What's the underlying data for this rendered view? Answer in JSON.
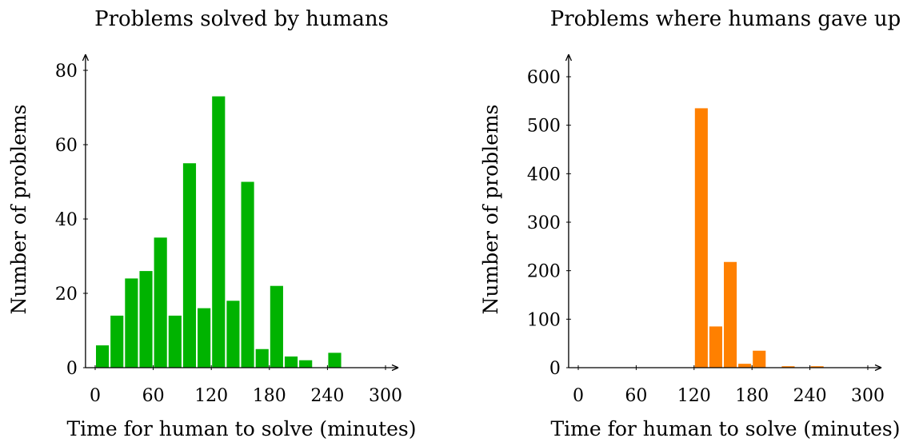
{
  "chart_data": [
    {
      "type": "bar",
      "title": "Problems solved by humans",
      "xlabel": "Time for human to solve (minutes)",
      "ylabel": "Number of problems",
      "bin_width": 15,
      "bins": [
        0,
        15,
        30,
        45,
        60,
        75,
        90,
        105,
        120,
        135,
        150,
        165,
        180,
        195,
        210,
        225,
        240,
        255,
        270,
        285
      ],
      "values": [
        6,
        14,
        24,
        26,
        35,
        14,
        55,
        16,
        73,
        18,
        50,
        5,
        22,
        3,
        2,
        0,
        4,
        0,
        0,
        0
      ],
      "xlim": [
        -10,
        310
      ],
      "ylim": [
        0,
        85
      ],
      "xticks": [
        0,
        60,
        120,
        180,
        240,
        300
      ],
      "xtick_labels": [
        "0",
        "60",
        "120",
        "180",
        "240",
        "300"
      ],
      "yticks": [
        0,
        20,
        40,
        60,
        80
      ],
      "ytick_labels": [
        "0",
        "20",
        "40",
        "60",
        "80"
      ],
      "color": "#00b300",
      "grid": false
    },
    {
      "type": "bar",
      "title": "Problems where humans gave up",
      "xlabel": "Time for human to solve (minutes)",
      "ylabel": "Number of problems",
      "bin_width": 15,
      "bins": [
        0,
        15,
        30,
        45,
        60,
        75,
        90,
        105,
        120,
        135,
        150,
        165,
        180,
        195,
        210,
        225,
        240,
        255,
        270,
        285
      ],
      "values": [
        0,
        0,
        0,
        0,
        0,
        0,
        0,
        0,
        535,
        85,
        218,
        8,
        35,
        0,
        3,
        0,
        3,
        0,
        0,
        0
      ],
      "xlim": [
        -10,
        310
      ],
      "ylim": [
        0,
        610
      ],
      "xticks": [
        0,
        60,
        120,
        180,
        240,
        300
      ],
      "xtick_labels": [
        "0",
        "60",
        "120",
        "180",
        "240",
        "300"
      ],
      "yticks": [
        0,
        100,
        200,
        300,
        400,
        500,
        600
      ],
      "ytick_labels": [
        "0",
        "100",
        "200",
        "300",
        "400",
        "500",
        "600"
      ],
      "color": "#ff8000",
      "grid": false
    }
  ]
}
